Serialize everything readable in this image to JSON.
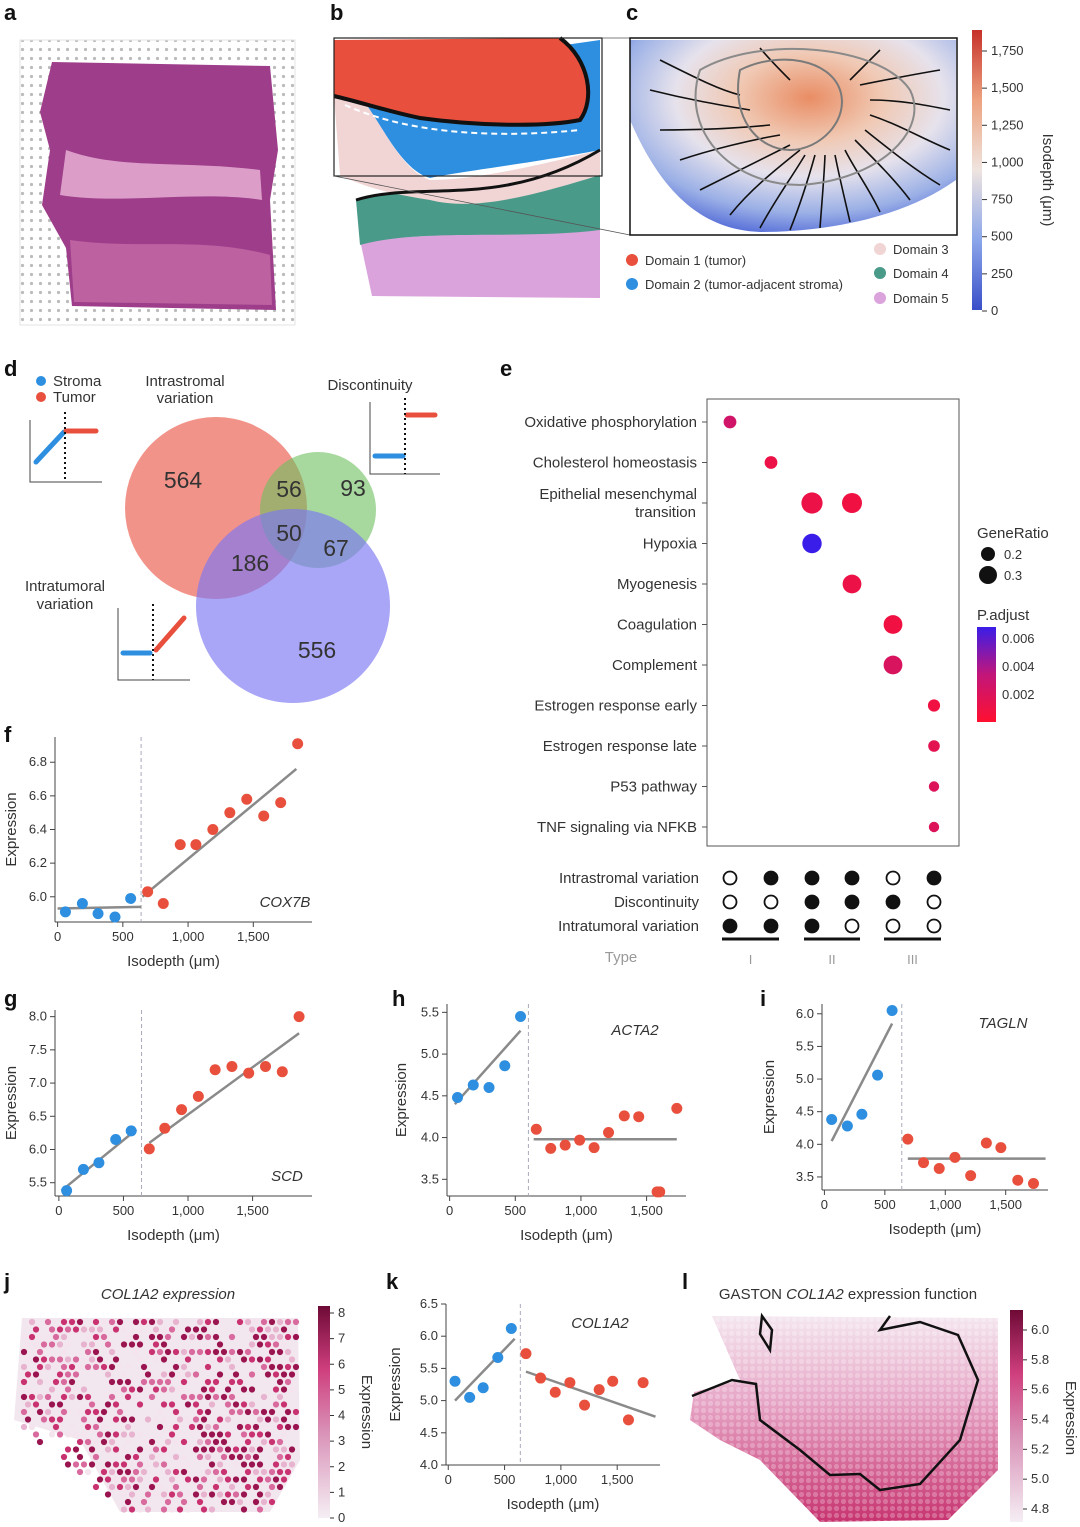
{
  "panels": {
    "a": {
      "letter": "a"
    },
    "b": {
      "letter": "b",
      "legend": [
        {
          "label": "Domain 1 (tumor)",
          "color": "#e8503d"
        },
        {
          "label": "Domain 2 (tumor-adjacent stroma)",
          "color": "#2e8fe0"
        },
        {
          "label": "Domain 3",
          "color": "#f1d4d4"
        },
        {
          "label": "Domain 4",
          "color": "#4a9a8a"
        },
        {
          "label": "Domain 5",
          "color": "#dba3dc"
        }
      ]
    },
    "c": {
      "letter": "c",
      "colorbar_label": "Isodepth (μm)",
      "colorbar_ticks": [
        "1,750",
        "1,500",
        "1,250",
        "1,000",
        "750",
        "500",
        "250",
        "0"
      ]
    },
    "d": {
      "letter": "d",
      "legend": [
        {
          "label": "Stroma",
          "color": "#2e8fe0"
        },
        {
          "label": "Tumor",
          "color": "#e8503d"
        }
      ],
      "labels": {
        "intrastromal": [
          "Intrastromal",
          "variation"
        ],
        "discontinuity": "Discontinuity",
        "intratumoral": [
          "Intratumoral",
          "variation"
        ]
      },
      "counts": {
        "only_intrastromal": "564",
        "intrastromal_discontinuity": "56",
        "only_discontinuity": "93",
        "all_three": "50",
        "intrastromal_intratumoral": "186",
        "discontinuity_intratumoral": "67",
        "only_intratumoral": "556"
      }
    },
    "e": {
      "letter": "e",
      "pathways": [
        "Oxidative phosphorylation",
        "Cholesterol homeostasis",
        "Epithelial mesenchymal transition",
        "Hypoxia",
        "Myogenesis",
        "Coagulation",
        "Complement",
        "Estrogen response early",
        "Estrogen response late",
        "P53 pathway",
        "TNF signaling via NFKB"
      ],
      "gene_ratio_title": "GeneRatio",
      "gene_ratio_ticks": [
        "0.2",
        "0.3"
      ],
      "padjust_title": "P.adjust",
      "padjust_ticks": [
        "0.006",
        "0.004",
        "0.002"
      ],
      "type_rows": [
        "Intrastromal variation",
        "Discontinuity",
        "Intratumoral variation"
      ],
      "type_label": "Type",
      "type_groups": [
        "I",
        "II",
        "III"
      ]
    },
    "j": {
      "letter": "j",
      "title": "COL1A2 expression",
      "colorbar_label": "Expression",
      "colorbar_ticks": [
        "8",
        "7",
        "6",
        "5",
        "4",
        "3",
        "2",
        "1",
        "0"
      ]
    },
    "l": {
      "letter": "l",
      "title_prefix": "GASTON ",
      "title_gene": "COL1A2",
      "title_suffix": " expression function",
      "colorbar_label": "Expression",
      "colorbar_ticks": [
        "6.0",
        "5.8",
        "5.6",
        "5.4",
        "5.2",
        "5.0",
        "4.8"
      ]
    }
  },
  "chart_data": [
    {
      "id": "e",
      "type": "scatter",
      "columns": [
        "I",
        "I",
        "II",
        "II",
        "III",
        "III"
      ],
      "type_matrix": [
        [
          false,
          true,
          true,
          true,
          false,
          true
        ],
        [
          false,
          false,
          true,
          true,
          true,
          false
        ],
        [
          true,
          true,
          true,
          false,
          false,
          false
        ]
      ],
      "points": [
        {
          "pathway": "Oxidative phosphorylation",
          "column": 0,
          "gene_ratio": 0.18,
          "p_adjust": 0.0025
        },
        {
          "pathway": "Cholesterol homeostasis",
          "column": 1,
          "gene_ratio": 0.18,
          "p_adjust": 0.001
        },
        {
          "pathway": "Epithelial mesenchymal transition",
          "column": 2,
          "gene_ratio": 0.32,
          "p_adjust": 0.001
        },
        {
          "pathway": "Epithelial mesenchymal transition",
          "column": 3,
          "gene_ratio": 0.3,
          "p_adjust": 0.0008
        },
        {
          "pathway": "Hypoxia",
          "column": 2,
          "gene_ratio": 0.29,
          "p_adjust": 0.0065
        },
        {
          "pathway": "Myogenesis",
          "column": 3,
          "gene_ratio": 0.28,
          "p_adjust": 0.001
        },
        {
          "pathway": "Coagulation",
          "column": 4,
          "gene_ratio": 0.28,
          "p_adjust": 0.0008
        },
        {
          "pathway": "Complement",
          "column": 4,
          "gene_ratio": 0.28,
          "p_adjust": 0.002
        },
        {
          "pathway": "Estrogen response early",
          "column": 5,
          "gene_ratio": 0.17,
          "p_adjust": 0.0008
        },
        {
          "pathway": "Estrogen response late",
          "column": 5,
          "gene_ratio": 0.16,
          "p_adjust": 0.0015
        },
        {
          "pathway": "P53 pathway",
          "column": 5,
          "gene_ratio": 0.14,
          "p_adjust": 0.0018
        },
        {
          "pathway": "TNF signaling via NFKB",
          "column": 5,
          "gene_ratio": 0.14,
          "p_adjust": 0.0018
        }
      ]
    },
    {
      "id": "f",
      "type": "scatter",
      "gene": "COX7B",
      "xlabel": "Isodepth (μm)",
      "ylabel": "Expression",
      "xlim": [
        -20,
        1950
      ],
      "ylim": [
        5.85,
        6.95
      ],
      "xticks": [
        0,
        500,
        1000,
        1500
      ],
      "xticklabels": [
        "0",
        "500",
        "1,000",
        "1,500"
      ],
      "yticks": [
        6.0,
        6.2,
        6.4,
        6.6,
        6.8
      ],
      "yticklabels": [
        "6.0",
        "6.2",
        "6.4",
        "6.6",
        "6.8"
      ],
      "boundary": 640,
      "series": [
        {
          "name": "Stroma",
          "color": "#2e8fe0",
          "x": [
            60,
            190,
            310,
            440,
            560
          ],
          "y": [
            5.91,
            5.96,
            5.9,
            5.88,
            5.99
          ],
          "fit": [
            [
              0,
              5.93
            ],
            [
              640,
              5.94
            ]
          ]
        },
        {
          "name": "Tumor",
          "color": "#e8503d",
          "x": [
            690,
            810,
            940,
            1060,
            1190,
            1320,
            1450,
            1580,
            1710,
            1840
          ],
          "y": [
            6.03,
            5.96,
            6.31,
            6.31,
            6.4,
            6.5,
            6.58,
            6.48,
            6.56,
            6.91
          ],
          "fit": [
            [
              650,
              6.0
            ],
            [
              1830,
              6.76
            ]
          ]
        }
      ]
    },
    {
      "id": "g",
      "type": "scatter",
      "gene": "SCD",
      "xlabel": "Isodepth (μm)",
      "ylabel": "Expression",
      "xlim": [
        -30,
        1960
      ],
      "ylim": [
        5.3,
        8.1
      ],
      "xticks": [
        0,
        500,
        1000,
        1500
      ],
      "xticklabels": [
        "0",
        "500",
        "1,000",
        "1,500"
      ],
      "yticks": [
        5.5,
        6.0,
        6.5,
        7.0,
        7.5,
        8.0
      ],
      "yticklabels": [
        "5.5",
        "6.0",
        "6.5",
        "7.0",
        "7.5",
        "8.0"
      ],
      "boundary": 640,
      "series": [
        {
          "name": "Stroma",
          "color": "#2e8fe0",
          "x": [
            60,
            190,
            310,
            440,
            560
          ],
          "y": [
            5.38,
            5.7,
            5.8,
            6.15,
            6.28
          ],
          "fit": [
            [
              20,
              5.38
            ],
            [
              600,
              6.3
            ]
          ]
        },
        {
          "name": "Tumor",
          "color": "#e8503d",
          "x": [
            700,
            820,
            950,
            1080,
            1210,
            1340,
            1470,
            1600,
            1730,
            1860
          ],
          "y": [
            6.01,
            6.32,
            6.6,
            6.8,
            7.2,
            7.25,
            7.15,
            7.25,
            7.17,
            8.0
          ],
          "fit": [
            [
              700,
              6.1
            ],
            [
              1860,
              7.75
            ]
          ]
        }
      ]
    },
    {
      "id": "h",
      "type": "scatter",
      "gene": "ACTA2",
      "xlabel": "Isodepth (μm)",
      "ylabel": "Expression",
      "xlim": [
        -20,
        1800
      ],
      "ylim": [
        3.3,
        5.6
      ],
      "xticks": [
        0,
        500,
        1000,
        1500
      ],
      "xticklabels": [
        "0",
        "500",
        "1,000",
        "1,500"
      ],
      "yticks": [
        3.5,
        4.0,
        4.5,
        5.0,
        5.5
      ],
      "yticklabels": [
        "3.5",
        "4.0",
        "4.5",
        "5.0",
        "5.5"
      ],
      "boundary": 600,
      "series": [
        {
          "name": "Stroma",
          "color": "#2e8fe0",
          "x": [
            60,
            180,
            300,
            420,
            540
          ],
          "y": [
            4.48,
            4.63,
            4.6,
            4.86,
            5.45
          ],
          "fit": [
            [
              40,
              4.4
            ],
            [
              540,
              5.28
            ]
          ]
        },
        {
          "name": "Tumor",
          "color": "#e8503d",
          "x": [
            660,
            770,
            880,
            990,
            1100,
            1210,
            1330,
            1440,
            1580,
            1600,
            1730
          ],
          "y": [
            4.1,
            3.87,
            3.91,
            3.97,
            3.88,
            4.06,
            4.26,
            4.25,
            3.35,
            3.35,
            4.35
          ],
          "fit": [
            [
              640,
              3.98
            ],
            [
              1730,
              3.98
            ]
          ]
        }
      ]
    },
    {
      "id": "i",
      "type": "scatter",
      "gene": "TAGLN",
      "xlabel": "Isodepth (μm)",
      "ylabel": "Expression",
      "xlim": [
        -20,
        1850
      ],
      "ylim": [
        3.3,
        6.15
      ],
      "xticks": [
        0,
        500,
        1000,
        1500
      ],
      "xticklabels": [
        "0",
        "500",
        "1,000",
        "1,500"
      ],
      "yticks": [
        3.5,
        4.0,
        4.5,
        5.0,
        5.5,
        6.0
      ],
      "yticklabels": [
        "3.5",
        "4.0",
        "4.5",
        "5.0",
        "5.5",
        "6.0"
      ],
      "boundary": 640,
      "series": [
        {
          "name": "Stroma",
          "color": "#2e8fe0",
          "x": [
            60,
            190,
            310,
            440,
            560
          ],
          "y": [
            4.38,
            4.28,
            4.46,
            5.06,
            6.05
          ],
          "fit": [
            [
              60,
              4.05
            ],
            [
              560,
              5.85
            ]
          ]
        },
        {
          "name": "Tumor",
          "color": "#e8503d",
          "x": [
            690,
            820,
            950,
            1080,
            1210,
            1340,
            1460,
            1600,
            1730
          ],
          "y": [
            4.08,
            3.72,
            3.63,
            3.8,
            3.52,
            4.02,
            3.95,
            3.45,
            3.4
          ],
          "fit": [
            [
              690,
              3.78
            ],
            [
              1830,
              3.78
            ]
          ]
        }
      ]
    },
    {
      "id": "k",
      "type": "scatter",
      "gene": "COL1A2",
      "xlabel": "Isodepth (μm)",
      "ylabel": "Expression",
      "xlim": [
        -20,
        1880
      ],
      "ylim": [
        4.0,
        6.5
      ],
      "xticks": [
        0,
        500,
        1000,
        1500
      ],
      "xticklabels": [
        "0",
        "500",
        "1,000",
        "1,500"
      ],
      "yticks": [
        4.0,
        4.5,
        5.0,
        5.5,
        6.0,
        6.5
      ],
      "yticklabels": [
        "4.0",
        "4.5",
        "5.0",
        "5.5",
        "6.0",
        "6.5"
      ],
      "boundary": 640,
      "series": [
        {
          "name": "Stroma",
          "color": "#2e8fe0",
          "x": [
            60,
            190,
            310,
            440,
            560
          ],
          "y": [
            5.3,
            5.05,
            5.2,
            5.67,
            6.12
          ],
          "fit": [
            [
              60,
              5.0
            ],
            [
              590,
              5.96
            ]
          ]
        },
        {
          "name": "Tumor",
          "color": "#e8503d",
          "x": [
            690,
            820,
            950,
            1080,
            1210,
            1340,
            1460,
            1600,
            1730
          ],
          "y": [
            5.73,
            5.35,
            5.13,
            5.28,
            4.93,
            5.17,
            5.3,
            4.7,
            5.28
          ],
          "fit": [
            [
              690,
              5.45
            ],
            [
              1840,
              4.75
            ]
          ]
        }
      ]
    }
  ]
}
